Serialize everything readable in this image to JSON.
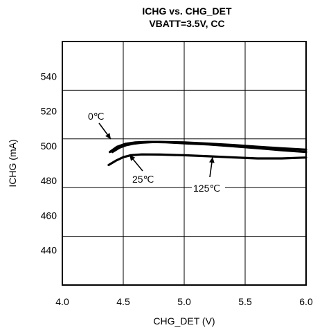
{
  "chart_data": {
    "type": "line",
    "title": "ICHG vs. CHG_DET",
    "subtitle": "VBATT=3.5V, CC",
    "xlabel": "CHG_DET (V)",
    "ylabel": "ICHG (mA)",
    "xlim": [
      4.0,
      6.0
    ],
    "ylim": [
      420,
      560
    ],
    "xticks": [
      4.0,
      4.5,
      5.0,
      5.5,
      6.0
    ],
    "xtick_labels": [
      "4.0",
      "4.5",
      "5.0",
      "5.5",
      "6.0"
    ],
    "yticks": [
      440,
      460,
      480,
      500,
      520,
      540
    ],
    "ytick_labels": [
      "440",
      "460",
      "480",
      "500",
      "520",
      "540"
    ],
    "grid": true,
    "series": [
      {
        "name": "0℃",
        "x": [
          4.39,
          4.45,
          4.52,
          4.6,
          4.7,
          4.8,
          5.0,
          5.2,
          5.4,
          5.6,
          5.8,
          6.0
        ],
        "y": [
          496.5,
          499.5,
          501.2,
          502.0,
          502.3,
          502.3,
          502.0,
          501.3,
          500.5,
          499.5,
          498.6,
          497.8
        ]
      },
      {
        "name": "25℃",
        "x": [
          4.41,
          4.47,
          4.52,
          4.58,
          4.65,
          4.75,
          4.85,
          5.0,
          5.2,
          5.4,
          5.6,
          5.8,
          6.0
        ],
        "y": [
          496.5,
          499.0,
          500.3,
          501.2,
          501.8,
          502.2,
          502.1,
          501.5,
          500.8,
          499.8,
          498.7,
          497.5,
          496.5
        ]
      },
      {
        "name": "125℃",
        "x": [
          4.38,
          4.44,
          4.5,
          4.56,
          4.65,
          4.8,
          5.0,
          5.2,
          5.4,
          5.6,
          5.8,
          6.0
        ],
        "y": [
          489.0,
          491.5,
          493.5,
          494.6,
          495.1,
          495.0,
          494.6,
          494.0,
          493.4,
          492.8,
          492.8,
          493.3
        ]
      }
    ],
    "annotations": [
      {
        "text": "0℃"
      },
      {
        "text": "25℃"
      },
      {
        "text": "125℃"
      }
    ]
  }
}
